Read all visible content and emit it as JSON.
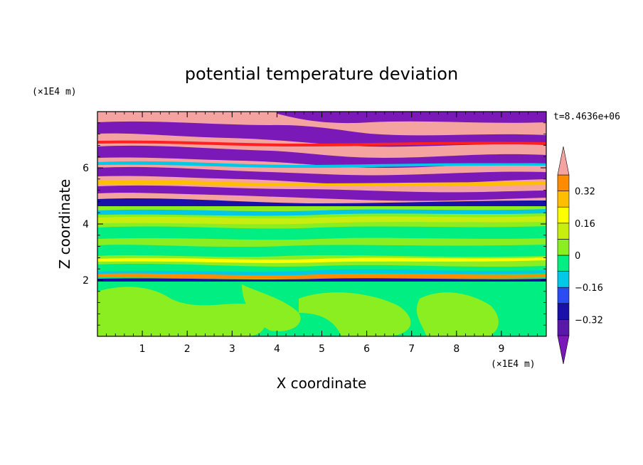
{
  "chart_data": {
    "type": "heatmap",
    "title": "potential temperature deviation",
    "xlabel": "X coordinate",
    "ylabel": "Z coordinate",
    "x_unit": "(×1E4 m)",
    "y_unit": "(×1E4 m)",
    "time_label": "t=8.4636e+06",
    "xlim": [
      0,
      10
    ],
    "ylim": [
      0,
      8
    ],
    "x_ticks": [
      "1",
      "2",
      "3",
      "4",
      "5",
      "6",
      "7",
      "8",
      "9"
    ],
    "y_ticks": [
      "2",
      "4",
      "6"
    ],
    "colorbar": {
      "levels": [
        -0.48,
        -0.4,
        -0.32,
        -0.24,
        -0.16,
        -0.08,
        0,
        0.08,
        0.16,
        0.24,
        0.32,
        0.4,
        0.48
      ],
      "tick_labels": [
        "0.32",
        "0.16",
        "0",
        "−0.16",
        "−0.32"
      ],
      "tick_values": [
        0.32,
        0.16,
        0,
        -0.16,
        -0.32
      ],
      "colors": [
        "#7a19b8",
        "#5a18a8",
        "#1a0fa8",
        "#2a4cf2",
        "#00c8e6",
        "#00ee82",
        "#8aee20",
        "#c8ee10",
        "#ffff00",
        "#ffbf00",
        "#ff8c00",
        "#ff2020",
        "#f4a3a0"
      ],
      "extend": "both"
    },
    "regions": [
      {
        "z_range": [
          0.0,
          2.0
        ],
        "dominant": [
          "0",
          "0.08"
        ],
        "description": "green bands"
      },
      {
        "z_range": [
          2.0,
          4.3
        ],
        "dominant": [
          "0",
          "0.08",
          "0.16",
          "-0.16"
        ],
        "description": "mixed green layers"
      },
      {
        "z_range": [
          4.3,
          8.0
        ],
        "dominant": [
          "0.48",
          "-0.48",
          "-0.32"
        ],
        "description": "alternating pink and purple layers"
      }
    ]
  }
}
